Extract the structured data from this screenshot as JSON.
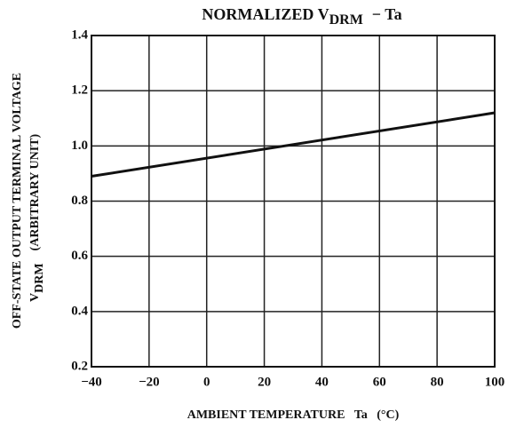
{
  "chart_data": {
    "type": "line",
    "title_parts": [
      "NORMALIZED V",
      "DRM",
      "− Ta"
    ],
    "ylabel_line1": "OFF-STATE OUTPUT TERMINAL VOLTAGE",
    "ylabel_line2_parts": [
      "V",
      "DRM",
      "(ARBITRARY UNIT)"
    ],
    "xlabel": "AMBIENT TEMPERATURE   Ta   (°C)",
    "x": [
      -40,
      100
    ],
    "series": [
      {
        "color": "#111111",
        "values": [
          0.89,
          1.12
        ]
      }
    ],
    "xlim": [
      -40,
      100
    ],
    "xticks": [
      {
        "value": -40,
        "label": "−40"
      },
      {
        "value": -20,
        "label": "−20"
      },
      0,
      20,
      40,
      60,
      80,
      100
    ],
    "ylim": [
      0.2,
      1.4
    ],
    "yticks": [
      0.2,
      0.4,
      0.6,
      0.8,
      {
        "value": 1.0,
        "label": "1.0"
      },
      1.2,
      1.4
    ],
    "grid": true
  }
}
